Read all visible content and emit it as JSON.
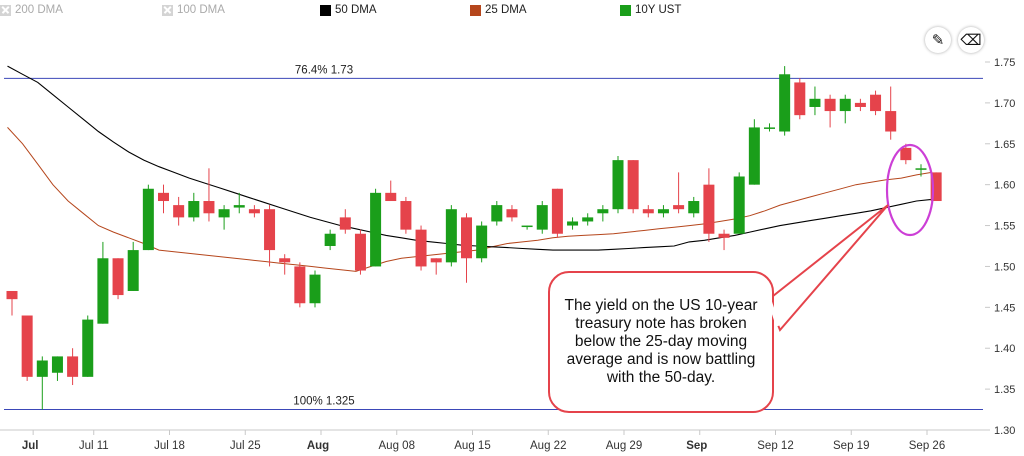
{
  "legend": [
    {
      "label": "200 DMA",
      "color": "#d4d4d4",
      "enabled": false
    },
    {
      "label": "100 DMA",
      "color": "#d4d4d4",
      "enabled": false
    },
    {
      "label": "50 DMA",
      "color": "#000000",
      "enabled": true
    },
    {
      "label": "25 DMA",
      "color": "#b5461c",
      "enabled": true
    },
    {
      "label": "10Y UST",
      "color": "#1a9e1a",
      "enabled": true
    }
  ],
  "toolbar": {
    "draw_icon": "pencil-icon",
    "erase_icon": "eraser-icon"
  },
  "annotation": {
    "text": "The yield on the US 10-year treasury note has broken below the 25-day moving average and is now battling with the 50-day.",
    "lines": [
      "The yield on the US 10-",
      "year treasury note has",
      "broken below the 25-day",
      "moving average and is",
      "now battling with the 50-",
      "day."
    ]
  },
  "chart_data": {
    "type": "candlestick",
    "ylim": [
      1.3,
      1.75
    ],
    "y_ticks": [
      "1.75",
      "1.70",
      "1.65",
      "1.60",
      "1.55",
      "1.50",
      "1.45",
      "1.40",
      "1.35",
      "1.30"
    ],
    "x_ticks": [
      {
        "label": "Jul",
        "bold": true,
        "index": 1
      },
      {
        "label": "Jul 11",
        "bold": false,
        "index": 5
      },
      {
        "label": "Jul 18",
        "bold": false,
        "index": 10
      },
      {
        "label": "Jul 25",
        "bold": false,
        "index": 15
      },
      {
        "label": "Aug",
        "bold": true,
        "index": 20
      },
      {
        "label": "Aug 08",
        "bold": false,
        "index": 25
      },
      {
        "label": "Aug 15",
        "bold": false,
        "index": 30
      },
      {
        "label": "Aug 22",
        "bold": false,
        "index": 35
      },
      {
        "label": "Aug 29",
        "bold": false,
        "index": 40
      },
      {
        "label": "Sep",
        "bold": true,
        "index": 45
      },
      {
        "label": "Sep 12",
        "bold": false,
        "index": 50
      },
      {
        "label": "Sep 19",
        "bold": false,
        "index": 55
      },
      {
        "label": "Sep 26",
        "bold": false,
        "index": 60
      }
    ],
    "levels": [
      {
        "label": "76.4% 1.73",
        "value": 1.73
      },
      {
        "label": "100% 1.325",
        "value": 1.325
      }
    ],
    "colors": {
      "up": "#1a9e1a",
      "down": "#e5434b",
      "level": "#3b47b8",
      "dma50": "#000000",
      "dma25": "#b5461c",
      "highlight": "#cc3fd6",
      "arrow": "#e5434b"
    },
    "candles": [
      {
        "o": 1.47,
        "h": 1.47,
        "l": 1.44,
        "c": 1.46
      },
      {
        "o": 1.44,
        "h": 1.44,
        "l": 1.36,
        "c": 1.365
      },
      {
        "o": 1.365,
        "h": 1.39,
        "l": 1.325,
        "c": 1.385
      },
      {
        "o": 1.37,
        "h": 1.39,
        "l": 1.36,
        "c": 1.39
      },
      {
        "o": 1.39,
        "h": 1.4,
        "l": 1.355,
        "c": 1.365
      },
      {
        "o": 1.365,
        "h": 1.44,
        "l": 1.365,
        "c": 1.435
      },
      {
        "o": 1.43,
        "h": 1.53,
        "l": 1.43,
        "c": 1.51
      },
      {
        "o": 1.51,
        "h": 1.51,
        "l": 1.46,
        "c": 1.465
      },
      {
        "o": 1.47,
        "h": 1.53,
        "l": 1.47,
        "c": 1.52
      },
      {
        "o": 1.52,
        "h": 1.6,
        "l": 1.52,
        "c": 1.595
      },
      {
        "o": 1.59,
        "h": 1.6,
        "l": 1.565,
        "c": 1.58
      },
      {
        "o": 1.575,
        "h": 1.585,
        "l": 1.55,
        "c": 1.56
      },
      {
        "o": 1.56,
        "h": 1.59,
        "l": 1.555,
        "c": 1.58
      },
      {
        "o": 1.58,
        "h": 1.62,
        "l": 1.555,
        "c": 1.565
      },
      {
        "o": 1.56,
        "h": 1.575,
        "l": 1.545,
        "c": 1.57
      },
      {
        "o": 1.572,
        "h": 1.59,
        "l": 1.565,
        "c": 1.575
      },
      {
        "o": 1.57,
        "h": 1.575,
        "l": 1.56,
        "c": 1.565
      },
      {
        "o": 1.57,
        "h": 1.575,
        "l": 1.5,
        "c": 1.52
      },
      {
        "o": 1.51,
        "h": 1.515,
        "l": 1.49,
        "c": 1.505
      },
      {
        "o": 1.5,
        "h": 1.505,
        "l": 1.45,
        "c": 1.455
      },
      {
        "o": 1.455,
        "h": 1.495,
        "l": 1.45,
        "c": 1.49
      },
      {
        "o": 1.525,
        "h": 1.545,
        "l": 1.52,
        "c": 1.54
      },
      {
        "o": 1.56,
        "h": 1.57,
        "l": 1.54,
        "c": 1.545
      },
      {
        "o": 1.54,
        "h": 1.545,
        "l": 1.49,
        "c": 1.495
      },
      {
        "o": 1.5,
        "h": 1.595,
        "l": 1.5,
        "c": 1.59
      },
      {
        "o": 1.59,
        "h": 1.605,
        "l": 1.58,
        "c": 1.58
      },
      {
        "o": 1.58,
        "h": 1.585,
        "l": 1.54,
        "c": 1.545
      },
      {
        "o": 1.545,
        "h": 1.55,
        "l": 1.495,
        "c": 1.5
      },
      {
        "o": 1.51,
        "h": 1.51,
        "l": 1.49,
        "c": 1.505
      },
      {
        "o": 1.505,
        "h": 1.575,
        "l": 1.5,
        "c": 1.57
      },
      {
        "o": 1.56,
        "h": 1.565,
        "l": 1.48,
        "c": 1.51
      },
      {
        "o": 1.51,
        "h": 1.555,
        "l": 1.505,
        "c": 1.55
      },
      {
        "o": 1.555,
        "h": 1.58,
        "l": 1.55,
        "c": 1.575
      },
      {
        "o": 1.57,
        "h": 1.575,
        "l": 1.555,
        "c": 1.56
      },
      {
        "o": 1.55,
        "h": 1.55,
        "l": 1.545,
        "c": 1.55
      },
      {
        "o": 1.545,
        "h": 1.58,
        "l": 1.54,
        "c": 1.575
      },
      {
        "o": 1.595,
        "h": 1.595,
        "l": 1.535,
        "c": 1.54
      },
      {
        "o": 1.55,
        "h": 1.56,
        "l": 1.545,
        "c": 1.555
      },
      {
        "o": 1.555,
        "h": 1.565,
        "l": 1.55,
        "c": 1.56
      },
      {
        "o": 1.565,
        "h": 1.575,
        "l": 1.555,
        "c": 1.57
      },
      {
        "o": 1.57,
        "h": 1.635,
        "l": 1.565,
        "c": 1.63
      },
      {
        "o": 1.63,
        "h": 1.63,
        "l": 1.565,
        "c": 1.57
      },
      {
        "o": 1.57,
        "h": 1.575,
        "l": 1.56,
        "c": 1.565
      },
      {
        "o": 1.565,
        "h": 1.575,
        "l": 1.56,
        "c": 1.57
      },
      {
        "o": 1.575,
        "h": 1.615,
        "l": 1.565,
        "c": 1.57
      },
      {
        "o": 1.565,
        "h": 1.585,
        "l": 1.56,
        "c": 1.58
      },
      {
        "o": 1.6,
        "h": 1.62,
        "l": 1.53,
        "c": 1.54
      },
      {
        "o": 1.54,
        "h": 1.545,
        "l": 1.52,
        "c": 1.535
      },
      {
        "o": 1.54,
        "h": 1.615,
        "l": 1.54,
        "c": 1.61
      },
      {
        "o": 1.6,
        "h": 1.68,
        "l": 1.6,
        "c": 1.67
      },
      {
        "o": 1.67,
        "h": 1.675,
        "l": 1.665,
        "c": 1.67
      },
      {
        "o": 1.665,
        "h": 1.745,
        "l": 1.66,
        "c": 1.735
      },
      {
        "o": 1.725,
        "h": 1.73,
        "l": 1.68,
        "c": 1.685
      },
      {
        "o": 1.695,
        "h": 1.72,
        "l": 1.685,
        "c": 1.705
      },
      {
        "o": 1.705,
        "h": 1.71,
        "l": 1.67,
        "c": 1.69
      },
      {
        "o": 1.69,
        "h": 1.71,
        "l": 1.675,
        "c": 1.705
      },
      {
        "o": 1.7,
        "h": 1.705,
        "l": 1.69,
        "c": 1.695
      },
      {
        "o": 1.71,
        "h": 1.715,
        "l": 1.685,
        "c": 1.69
      },
      {
        "o": 1.69,
        "h": 1.72,
        "l": 1.655,
        "c": 1.665
      },
      {
        "o": 1.645,
        "h": 1.65,
        "l": 1.625,
        "c": 1.63
      },
      {
        "o": 1.62,
        "h": 1.625,
        "l": 1.61,
        "c": 1.62
      },
      {
        "o": 1.615,
        "h": 1.615,
        "l": 1.58,
        "c": 1.58
      }
    ],
    "series": [
      {
        "name": "50 DMA",
        "values": [
          1.745,
          1.735,
          1.725,
          1.71,
          1.695,
          1.68,
          1.665,
          1.652,
          1.64,
          1.63,
          1.622,
          1.615,
          1.608,
          1.602,
          1.596,
          1.59,
          1.584,
          1.578,
          1.572,
          1.566,
          1.56,
          1.555,
          1.55,
          1.546,
          1.542,
          1.538,
          1.535,
          1.532,
          1.53,
          1.528,
          1.526,
          1.525,
          1.524,
          1.523,
          1.522,
          1.521,
          1.52,
          1.52,
          1.52,
          1.52,
          1.521,
          1.522,
          1.523,
          1.524,
          1.525,
          1.53,
          1.532,
          1.535,
          1.538,
          1.542,
          1.546,
          1.55,
          1.553,
          1.556,
          1.559,
          1.562,
          1.565,
          1.568,
          1.572,
          1.576,
          1.58,
          1.582
        ]
      },
      {
        "name": "25 DMA",
        "values": [
          1.67,
          1.65,
          1.625,
          1.6,
          1.58,
          1.565,
          1.55,
          1.542,
          1.535,
          1.528,
          1.52,
          1.518,
          1.516,
          1.514,
          1.512,
          1.51,
          1.508,
          1.506,
          1.504,
          1.502,
          1.5,
          1.498,
          1.496,
          1.494,
          1.5,
          1.506,
          1.51,
          1.512,
          1.514,
          1.516,
          1.518,
          1.52,
          1.524,
          1.528,
          1.53,
          1.532,
          1.535,
          1.537,
          1.538,
          1.539,
          1.54,
          1.542,
          1.544,
          1.546,
          1.548,
          1.55,
          1.552,
          1.555,
          1.558,
          1.562,
          1.568,
          1.575,
          1.58,
          1.585,
          1.59,
          1.595,
          1.6,
          1.603,
          1.606,
          1.608,
          1.612,
          1.615
        ]
      }
    ]
  }
}
